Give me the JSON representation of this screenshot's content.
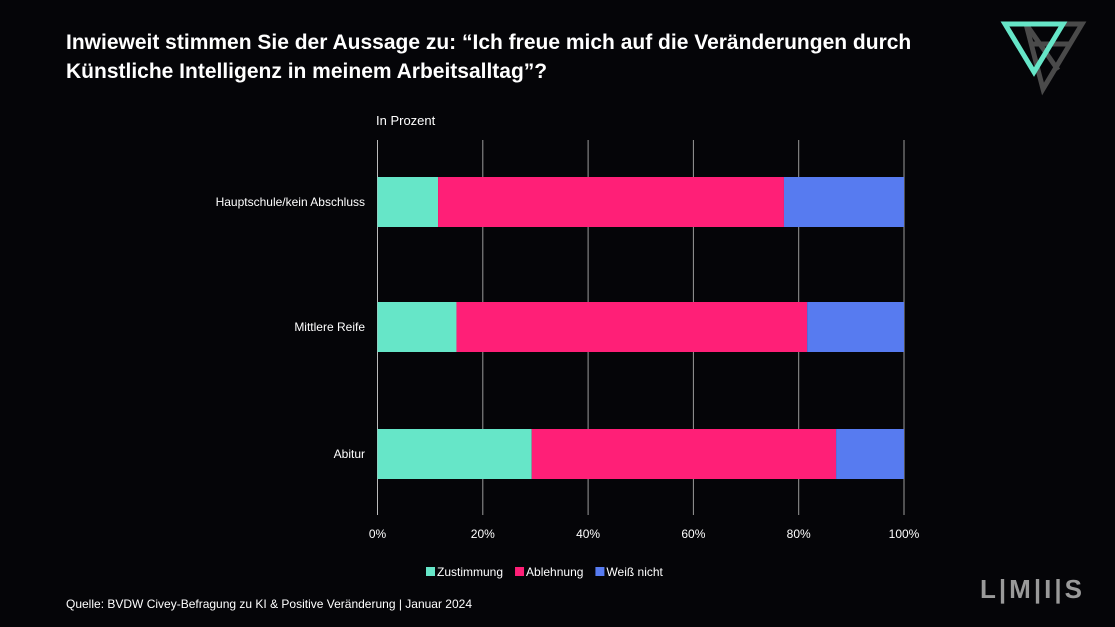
{
  "title": "Inwieweit stimmen Sie der Aussage zu: “Ich freue mich auf die Veränderungen durch Künstliche Intelligenz in meinem Arbeitsalltag”?",
  "subtitle": "In Prozent",
  "source": "Quelle: BVDW Civey-Befragung zu KI & Positive Veränderung | Januar 2024",
  "logo_text": "LMIS",
  "chart_data": {
    "type": "bar",
    "orientation": "horizontal",
    "stacked": true,
    "categories": [
      "Hauptschule/kein Abschluss",
      "Mittlere Reife",
      "Abitur"
    ],
    "series": [
      {
        "name": "Zustimmung",
        "color": "#66E6C8",
        "values": [
          11.5,
          15.0,
          29.3
        ]
      },
      {
        "name": "Ablehnung",
        "color": "#FF1F77",
        "values": [
          65.7,
          66.6,
          57.8
        ]
      },
      {
        "name": "Weiß nicht",
        "color": "#577BF0",
        "values": [
          22.8,
          18.4,
          12.9
        ]
      }
    ],
    "xlim": [
      0,
      100
    ],
    "xticks": [
      "0%",
      "20%",
      "40%",
      "60%",
      "80%",
      "100%"
    ],
    "grid": true,
    "legend": "bottom"
  }
}
